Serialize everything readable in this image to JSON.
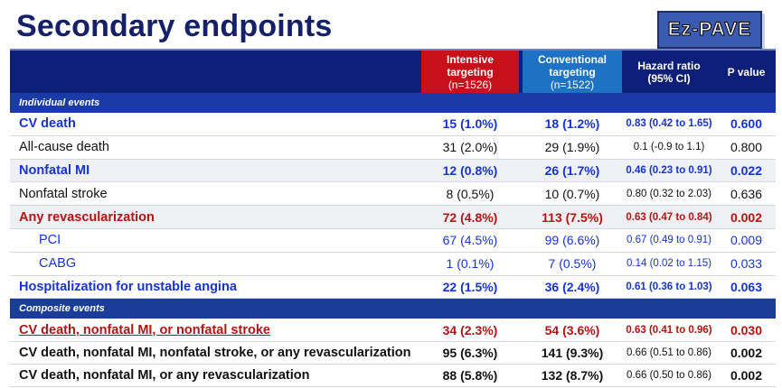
{
  "title": "Secondary endpoints",
  "logo": {
    "text": "Ez-PAVE"
  },
  "header": {
    "intensive": {
      "line1": "Intensive",
      "line2": "targeting",
      "line3": "(n=1526)"
    },
    "conventional": {
      "line1": "Conventional",
      "line2": "targeting",
      "line3": "(n=1522)"
    },
    "hazard": {
      "line1": "Hazard ratio",
      "line2": "(95% CI)"
    },
    "pvalue": "P value"
  },
  "sections": {
    "individual": "Individual events",
    "composite": "Composite events"
  },
  "individual_rows": [
    {
      "label": "CV death",
      "intensive": "15 (1.0%)",
      "conventional": "18 (1.2%)",
      "hr": "0.83 (0.42 to 1.65)",
      "p": "0.600"
    },
    {
      "label": "All-cause death",
      "intensive": "31 (2.0%)",
      "conventional": "29 (1.9%)",
      "hr": "0.1 (-0.9 to 1.1)",
      "p": "0.800"
    },
    {
      "label": "Nonfatal MI",
      "intensive": "12 (0.8%)",
      "conventional": "26 (1.7%)",
      "hr": "0.46 (0.23 to 0.91)",
      "p": "0.022"
    },
    {
      "label": "Nonfatal stroke",
      "intensive": "8 (0.5%)",
      "conventional": "10 (0.7%)",
      "hr": "0.80 (0.32 to 2.03)",
      "p": "0.636"
    },
    {
      "label": "Any revascularization",
      "intensive": "72 (4.8%)",
      "conventional": "113 (7.5%)",
      "hr": "0.63 (0.47 to 0.84)",
      "p": "0.002"
    },
    {
      "label": "PCI",
      "intensive": "67 (4.5%)",
      "conventional": "99 (6.6%)",
      "hr": "0.67 (0.49 to 0.91)",
      "p": "0.009"
    },
    {
      "label": "CABG",
      "intensive": "1 (0.1%)",
      "conventional": "7 (0.5%)",
      "hr": "0.14 (0.02 to 1.15)",
      "p": "0.033"
    },
    {
      "label": "Hospitalization for unstable angina",
      "intensive": "22 (1.5%)",
      "conventional": "36 (2.4%)",
      "hr": "0.61 (0.36 to 1.03)",
      "p": "0.063"
    }
  ],
  "composite_rows": [
    {
      "label": "CV death, nonfatal MI, or nonfatal stroke",
      "intensive": "34 (2.3%)",
      "conventional": "54 (3.6%)",
      "hr": "0.63 (0.41 to 0.96)",
      "p": "0.030"
    },
    {
      "label": "CV death, nonfatal MI, nonfatal stroke, or any revascularization",
      "intensive": "95 (6.3%)",
      "conventional": "141 (9.3%)",
      "hr": "0.66 (0.51 to 0.86)",
      "p": "0.002"
    },
    {
      "label": "CV death, nonfatal MI, or any revascularization",
      "intensive": "88 (5.8%)",
      "conventional": "132 (8.7%)",
      "hr": "0.66 (0.50 to 0.86)",
      "p": "0.002"
    }
  ],
  "colors": {
    "title": "#14206a",
    "header_bg": "#0d1f78",
    "intensive_bg": "#c8101a",
    "conventional_bg": "#1d72c4",
    "section_bg": "#1a3aa8",
    "blue_text": "#1633d6",
    "red_text": "#b51212"
  }
}
